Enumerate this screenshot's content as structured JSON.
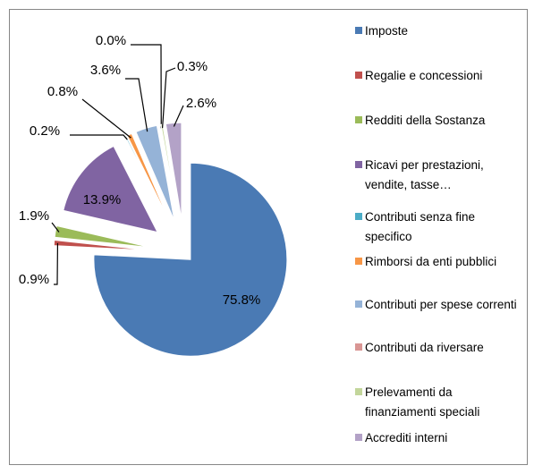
{
  "chart_data": {
    "type": "pie",
    "categories": [
      "Imposte",
      "Regalie e concessioni",
      "Redditi della Sostanza",
      "Ricavi per prestazioni, vendite, tasse…",
      "Contributi senza fine specifico",
      "Rimborsi da enti pubblici",
      "Contributi per spese correnti",
      "Contributi da riversare",
      "Prelevamenti da finanziamenti speciali",
      "Accrediti interni"
    ],
    "values": [
      75.8,
      0.9,
      1.9,
      13.9,
      0.2,
      0.8,
      3.6,
      0.0,
      0.3,
      2.6
    ],
    "value_labels": [
      "75.8%",
      "0.9%",
      "1.9%",
      "13.9%",
      "0.2%",
      "0.8%",
      "3.6%",
      "0.0%",
      "0.3%",
      "2.6%"
    ],
    "colors": [
      "#4a7ab4",
      "#c0504d",
      "#9bbb59",
      "#8064a2",
      "#4bacc6",
      "#f79646",
      "#95b3d7",
      "#d99694",
      "#c3d69b",
      "#b3a2c7"
    ],
    "legend": "right"
  }
}
